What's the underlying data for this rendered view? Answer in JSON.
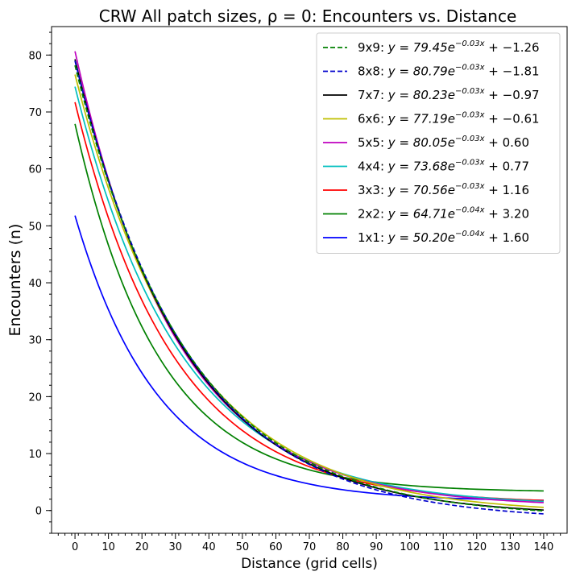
{
  "chart_data": {
    "type": "line",
    "title": "CRW All patch sizes, ρ = 0: Encounters vs. Distance",
    "xlabel": "Distance (grid cells)",
    "ylabel": "Encounters (n)",
    "xlim": [
      -7,
      147
    ],
    "ylim": [
      -4,
      85
    ],
    "x_ticks": [
      0,
      10,
      20,
      30,
      40,
      50,
      60,
      70,
      80,
      90,
      100,
      110,
      120,
      130,
      140
    ],
    "y_ticks": [
      0,
      10,
      20,
      30,
      40,
      50,
      60,
      70,
      80
    ],
    "grid": false,
    "legend_position": "top-right",
    "x_range": [
      0,
      140
    ],
    "series": [
      {
        "name": "9x9",
        "equation": "y = 79.45e^{-0.03x} + -1.26",
        "prefix": "9x9: ",
        "eq_main": "y = 79.45e",
        "eq_exp": "−0.03x",
        "eq_tail": " + −1.26",
        "a": 79.45,
        "b": -0.03,
        "c": -1.26,
        "color": "#008000",
        "dashed": true
      },
      {
        "name": "8x8",
        "equation": "y = 80.79e^{-0.03x} + -1.81",
        "prefix": "8x8: ",
        "eq_main": "y = 80.79e",
        "eq_exp": "−0.03x",
        "eq_tail": " + −1.81",
        "a": 80.79,
        "b": -0.03,
        "c": -1.81,
        "color": "#0000cc",
        "dashed": true
      },
      {
        "name": "7x7",
        "equation": "y = 80.23e^{-0.03x} + -0.97",
        "prefix": "7x7: ",
        "eq_main": "y = 80.23e",
        "eq_exp": "−0.03x",
        "eq_tail": " + −0.97",
        "a": 80.23,
        "b": -0.031,
        "c": -0.97,
        "color": "#000000",
        "dashed": false
      },
      {
        "name": "6x6",
        "equation": "y = 77.19e^{-0.03x} + -0.61",
        "prefix": "6x6: ",
        "eq_main": "y = 77.19e",
        "eq_exp": "−0.03x",
        "eq_tail": " + −0.61",
        "a": 77.19,
        "b": -0.03,
        "c": -0.61,
        "color": "#bfbf00",
        "dashed": false
      },
      {
        "name": "5x5",
        "equation": "y = 80.05e^{-0.03x} + 0.60",
        "prefix": "5x5: ",
        "eq_main": "y = 80.05e",
        "eq_exp": "−0.03x",
        "eq_tail": " + 0.60",
        "a": 80.05,
        "b": -0.033,
        "c": 0.6,
        "color": "#bf00bf",
        "dashed": false
      },
      {
        "name": "4x4",
        "equation": "y = 73.68e^{-0.03x} + 0.77",
        "prefix": "4x4: ",
        "eq_main": "y = 73.68e",
        "eq_exp": "−0.03x",
        "eq_tail": " + 0.77",
        "a": 73.68,
        "b": -0.032,
        "c": 0.77,
        "color": "#00bfbf",
        "dashed": false
      },
      {
        "name": "3x3",
        "equation": "y = 70.56e^{-0.03x} + 1.16",
        "prefix": "3x3: ",
        "eq_main": "y = 70.56e",
        "eq_exp": "−0.03x",
        "eq_tail": " + 1.16",
        "a": 70.56,
        "b": -0.034,
        "c": 1.16,
        "color": "#ff0000",
        "dashed": false
      },
      {
        "name": "2x2",
        "equation": "y = 64.71e^{-0.04x} + 3.20",
        "prefix": "2x2: ",
        "eq_main": "y = 64.71e",
        "eq_exp": "−0.04x",
        "eq_tail": " + 3.20",
        "a": 64.71,
        "b": -0.04,
        "c": 3.2,
        "color": "#008000",
        "dashed": false
      },
      {
        "name": "1x1",
        "equation": "y = 50.20e^{-0.04x} + 1.60",
        "prefix": "1x1: ",
        "eq_main": "y = 50.20e",
        "eq_exp": "−0.04x",
        "eq_tail": " + 1.60",
        "a": 50.2,
        "b": -0.04,
        "c": 1.6,
        "color": "#0000ff",
        "dashed": false
      }
    ]
  }
}
